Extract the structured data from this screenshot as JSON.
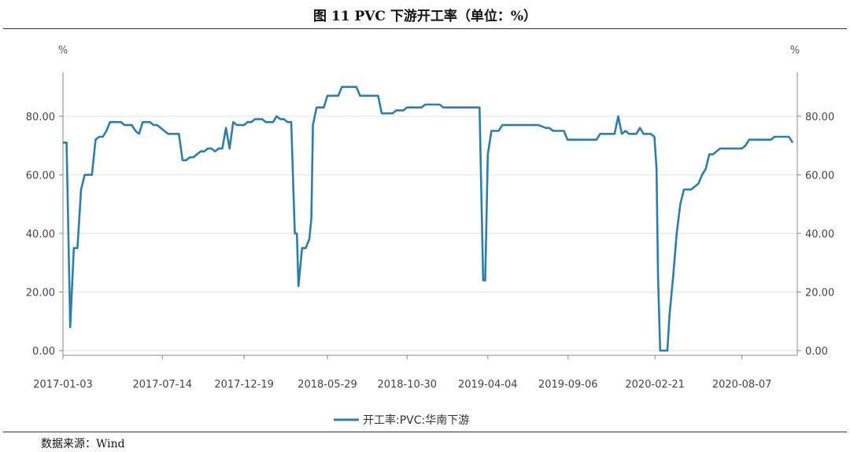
{
  "figure": {
    "title": "图 11   PVC 下游开工率（单位：%）",
    "source": "数据来源：Wind"
  },
  "chart_data": {
    "type": "line",
    "left_unit": "%",
    "right_unit": "%",
    "ylim": [
      0,
      95
    ],
    "yticks": [
      0,
      20,
      40,
      60,
      80
    ],
    "ytick_labels": [
      "0.00",
      "20.00",
      "40.00",
      "60.00",
      "80.00"
    ],
    "xlim": [
      "2017-01-03",
      "2020-11-22"
    ],
    "xtick_labels": [
      "2017-01-03",
      "2017-07-14",
      "2017-12-19",
      "2018-05-29",
      "2018-10-30",
      "2019-04-04",
      "2019-09-06",
      "2020-02-21",
      "2020-08-07"
    ],
    "grid": true,
    "legend_position": "bottom",
    "colors": {
      "series": "#2e7ea8",
      "grid": "#e2e2e2",
      "axis": "#888888"
    },
    "series": [
      {
        "name": "开工率:PVC:华南下游",
        "points": [
          [
            "2017-01-03",
            71
          ],
          [
            "2017-01-10",
            71
          ],
          [
            "2017-01-17",
            8
          ],
          [
            "2017-01-24",
            35
          ],
          [
            "2017-01-31",
            35
          ],
          [
            "2017-02-07",
            55
          ],
          [
            "2017-02-14",
            60
          ],
          [
            "2017-02-28",
            60
          ],
          [
            "2017-03-07",
            72
          ],
          [
            "2017-03-14",
            73
          ],
          [
            "2017-03-21",
            73
          ],
          [
            "2017-03-28",
            75
          ],
          [
            "2017-04-04",
            78
          ],
          [
            "2017-04-11",
            78
          ],
          [
            "2017-04-25",
            78
          ],
          [
            "2017-05-02",
            77
          ],
          [
            "2017-05-09",
            77
          ],
          [
            "2017-05-16",
            77
          ],
          [
            "2017-05-23",
            75
          ],
          [
            "2017-05-30",
            74
          ],
          [
            "2017-06-06",
            78
          ],
          [
            "2017-06-13",
            78
          ],
          [
            "2017-06-20",
            78
          ],
          [
            "2017-06-27",
            77
          ],
          [
            "2017-07-04",
            77
          ],
          [
            "2017-07-11",
            76
          ],
          [
            "2017-07-18",
            75
          ],
          [
            "2017-07-25",
            74
          ],
          [
            "2017-08-01",
            74
          ],
          [
            "2017-08-08",
            74
          ],
          [
            "2017-08-15",
            74
          ],
          [
            "2017-08-22",
            65
          ],
          [
            "2017-08-29",
            65
          ],
          [
            "2017-09-05",
            66
          ],
          [
            "2017-09-12",
            66
          ],
          [
            "2017-09-19",
            67
          ],
          [
            "2017-09-26",
            68
          ],
          [
            "2017-10-03",
            68
          ],
          [
            "2017-10-10",
            69
          ],
          [
            "2017-10-17",
            69
          ],
          [
            "2017-10-24",
            68
          ],
          [
            "2017-10-31",
            69
          ],
          [
            "2017-11-07",
            69
          ],
          [
            "2017-11-14",
            76
          ],
          [
            "2017-11-21",
            69
          ],
          [
            "2017-11-28",
            78
          ],
          [
            "2017-12-05",
            77
          ],
          [
            "2017-12-12",
            77
          ],
          [
            "2017-12-19",
            77
          ],
          [
            "2017-12-26",
            78
          ],
          [
            "2018-01-02",
            78
          ],
          [
            "2018-01-09",
            79
          ],
          [
            "2018-01-16",
            79
          ],
          [
            "2018-01-23",
            79
          ],
          [
            "2018-01-30",
            78
          ],
          [
            "2018-02-06",
            78
          ],
          [
            "2018-02-13",
            78
          ],
          [
            "2018-02-20",
            80
          ],
          [
            "2018-02-27",
            79
          ],
          [
            "2018-03-06",
            79
          ],
          [
            "2018-03-13",
            78
          ],
          [
            "2018-03-20",
            78
          ],
          [
            "2018-03-27",
            40
          ],
          [
            "2018-03-31",
            40
          ],
          [
            "2018-04-03",
            22
          ],
          [
            "2018-04-10",
            35
          ],
          [
            "2018-04-17",
            35
          ],
          [
            "2018-04-24",
            38
          ],
          [
            "2018-04-28",
            45
          ],
          [
            "2018-05-01",
            77
          ],
          [
            "2018-05-08",
            83
          ],
          [
            "2018-05-15",
            83
          ],
          [
            "2018-05-22",
            83
          ],
          [
            "2018-05-29",
            87
          ],
          [
            "2018-06-05",
            87
          ],
          [
            "2018-06-19",
            87
          ],
          [
            "2018-06-26",
            90
          ],
          [
            "2018-07-10",
            90
          ],
          [
            "2018-07-24",
            90
          ],
          [
            "2018-07-31",
            87
          ],
          [
            "2018-08-14",
            87
          ],
          [
            "2018-08-28",
            87
          ],
          [
            "2018-09-04",
            87
          ],
          [
            "2018-09-11",
            81
          ],
          [
            "2018-09-25",
            81
          ],
          [
            "2018-10-02",
            81
          ],
          [
            "2018-10-09",
            82
          ],
          [
            "2018-10-23",
            82
          ],
          [
            "2018-10-30",
            83
          ],
          [
            "2018-11-13",
            83
          ],
          [
            "2018-11-27",
            83
          ],
          [
            "2018-12-04",
            84
          ],
          [
            "2018-12-18",
            84
          ],
          [
            "2019-01-01",
            84
          ],
          [
            "2019-01-08",
            83
          ],
          [
            "2019-01-29",
            83
          ],
          [
            "2019-02-19",
            83
          ],
          [
            "2019-03-05",
            83
          ],
          [
            "2019-03-12",
            83
          ],
          [
            "2019-03-19",
            83
          ],
          [
            "2019-03-26",
            24
          ],
          [
            "2019-03-30",
            24
          ],
          [
            "2019-04-04",
            67
          ],
          [
            "2019-04-11",
            75
          ],
          [
            "2019-04-18",
            75
          ],
          [
            "2019-04-25",
            75
          ],
          [
            "2019-05-02",
            77
          ],
          [
            "2019-05-16",
            77
          ],
          [
            "2019-06-06",
            77
          ],
          [
            "2019-06-27",
            77
          ],
          [
            "2019-07-11",
            77
          ],
          [
            "2019-07-25",
            76
          ],
          [
            "2019-08-01",
            76
          ],
          [
            "2019-08-08",
            75
          ],
          [
            "2019-08-15",
            75
          ],
          [
            "2019-08-29",
            75
          ],
          [
            "2019-09-05",
            72
          ],
          [
            "2019-09-19",
            72
          ],
          [
            "2019-10-03",
            72
          ],
          [
            "2019-10-17",
            72
          ],
          [
            "2019-10-31",
            72
          ],
          [
            "2019-11-07",
            74
          ],
          [
            "2019-11-21",
            74
          ],
          [
            "2019-12-05",
            74
          ],
          [
            "2019-12-12",
            80
          ],
          [
            "2019-12-19",
            74
          ],
          [
            "2019-12-26",
            75
          ],
          [
            "2020-01-02",
            74
          ],
          [
            "2020-01-09",
            74
          ],
          [
            "2020-01-16",
            74
          ],
          [
            "2020-01-23",
            76
          ],
          [
            "2020-01-30",
            74
          ],
          [
            "2020-02-06",
            74
          ],
          [
            "2020-02-13",
            74
          ],
          [
            "2020-02-20",
            73
          ],
          [
            "2020-02-24",
            62
          ],
          [
            "2020-02-27",
            25
          ],
          [
            "2020-03-02",
            0
          ],
          [
            "2020-03-16",
            0
          ],
          [
            "2020-03-20",
            12
          ],
          [
            "2020-03-27",
            25
          ],
          [
            "2020-04-03",
            40
          ],
          [
            "2020-04-10",
            50
          ],
          [
            "2020-04-17",
            55
          ],
          [
            "2020-04-24",
            55
          ],
          [
            "2020-05-01",
            55
          ],
          [
            "2020-05-08",
            56
          ],
          [
            "2020-05-15",
            57
          ],
          [
            "2020-05-22",
            60
          ],
          [
            "2020-05-29",
            62
          ],
          [
            "2020-06-05",
            67
          ],
          [
            "2020-06-12",
            67
          ],
          [
            "2020-06-19",
            68
          ],
          [
            "2020-06-26",
            69
          ],
          [
            "2020-07-10",
            69
          ],
          [
            "2020-07-24",
            69
          ],
          [
            "2020-08-07",
            69
          ],
          [
            "2020-08-14",
            70
          ],
          [
            "2020-08-21",
            72
          ],
          [
            "2020-09-04",
            72
          ],
          [
            "2020-09-18",
            72
          ],
          [
            "2020-10-02",
            72
          ],
          [
            "2020-10-09",
            73
          ],
          [
            "2020-10-23",
            73
          ],
          [
            "2020-11-06",
            73
          ],
          [
            "2020-11-13",
            71
          ]
        ]
      }
    ]
  }
}
